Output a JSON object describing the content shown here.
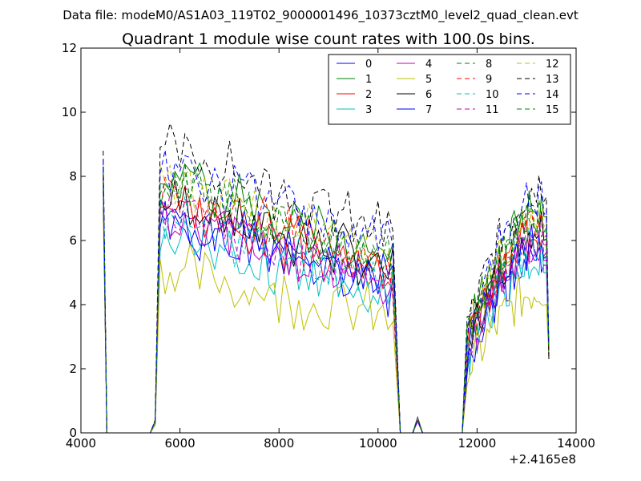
{
  "chart_data": {
    "type": "line",
    "suptitle": "Data file: modeM0/AS1A03_119T02_9000001496_10373cztM0_level2_quad_clean.evt",
    "title": "Quadrant 1 module wise count rates with 100.0s bins.",
    "xlabel": "",
    "ylabel": "",
    "x_offset_label": "+2.4165e8",
    "xlim": [
      4000,
      14000
    ],
    "ylim": [
      0,
      12
    ],
    "xticks": [
      4000,
      6000,
      8000,
      10000,
      12000,
      14000
    ],
    "xtick_labels": [
      "4000",
      "6000",
      "8000",
      "10000",
      "12000",
      "14000"
    ],
    "yticks": [
      0,
      2,
      4,
      6,
      8,
      10,
      12
    ],
    "ytick_labels": [
      "0",
      "2",
      "4",
      "6",
      "8",
      "10",
      "12"
    ],
    "grid": false,
    "legend_position": "top-right",
    "legend_columns": 4,
    "time_grid": {
      "segments": [
        [
          4450,
          5600
        ],
        [
          5600,
          10450
        ],
        [
          10450,
          11800
        ],
        [
          11800,
          13450
        ]
      ]
    },
    "series": [
      {
        "name": "0",
        "color": "#0000ff",
        "dash": "solid",
        "shape": {
          "scale": 0.85,
          "spike": 8.3,
          "amp": 1.0,
          "seed": 1
        }
      },
      {
        "name": "1",
        "color": "#008000",
        "dash": "solid",
        "shape": {
          "scale": 1.08,
          "spike": 8.1,
          "amp": 1.0,
          "seed": 2
        }
      },
      {
        "name": "2",
        "color": "#ff0000",
        "dash": "solid",
        "shape": {
          "scale": 0.95,
          "spike": 7.9,
          "amp": 1.0,
          "seed": 3
        }
      },
      {
        "name": "3",
        "color": "#00bfbf",
        "dash": "solid",
        "shape": {
          "scale": 0.82,
          "spike": 7.8,
          "amp": 1.0,
          "seed": 4
        }
      },
      {
        "name": "4",
        "color": "#bf00bf",
        "dash": "solid",
        "shape": {
          "scale": 0.88,
          "spike": 7.5,
          "amp": 1.0,
          "seed": 5
        }
      },
      {
        "name": "5",
        "color": "#bfbf00",
        "dash": "solid",
        "shape": {
          "scale": 0.68,
          "spike": 7.0,
          "amp": 1.1,
          "seed": 6
        }
      },
      {
        "name": "6",
        "color": "#000000",
        "dash": "solid",
        "shape": {
          "scale": 0.98,
          "spike": 8.0,
          "amp": 1.0,
          "seed": 7
        }
      },
      {
        "name": "7",
        "color": "#0000ff",
        "dash": "solid",
        "shape": {
          "scale": 0.9,
          "spike": 7.6,
          "amp": 1.0,
          "seed": 8
        }
      },
      {
        "name": "8",
        "color": "#008000",
        "dash": "dashed",
        "shape": {
          "scale": 1.02,
          "spike": 8.2,
          "amp": 1.0,
          "seed": 9
        }
      },
      {
        "name": "9",
        "color": "#ff0000",
        "dash": "dashed",
        "shape": {
          "scale": 1.0,
          "spike": 8.0,
          "amp": 1.0,
          "seed": 10
        }
      },
      {
        "name": "10",
        "color": "#00bfbf",
        "dash": "dashed",
        "shape": {
          "scale": 0.9,
          "spike": 7.7,
          "amp": 1.0,
          "seed": 11
        }
      },
      {
        "name": "11",
        "color": "#bf00bf",
        "dash": "dashed",
        "shape": {
          "scale": 0.92,
          "spike": 7.6,
          "amp": 1.0,
          "seed": 12
        }
      },
      {
        "name": "12",
        "color": "#bfbf00",
        "dash": "dashed",
        "shape": {
          "scale": 1.06,
          "spike": 8.4,
          "amp": 1.0,
          "seed": 13
        }
      },
      {
        "name": "13",
        "color": "#000000",
        "dash": "dashed",
        "shape": {
          "scale": 1.18,
          "spike": 8.8,
          "amp": 1.0,
          "seed": 14
        }
      },
      {
        "name": "14",
        "color": "#0000ff",
        "dash": "dashed",
        "shape": {
          "scale": 1.12,
          "spike": 8.5,
          "amp": 1.0,
          "seed": 15
        }
      },
      {
        "name": "15",
        "color": "#008000",
        "dash": "dashed",
        "shape": {
          "scale": 1.04,
          "spike": 8.1,
          "amp": 1.0,
          "seed": 16
        }
      }
    ]
  }
}
